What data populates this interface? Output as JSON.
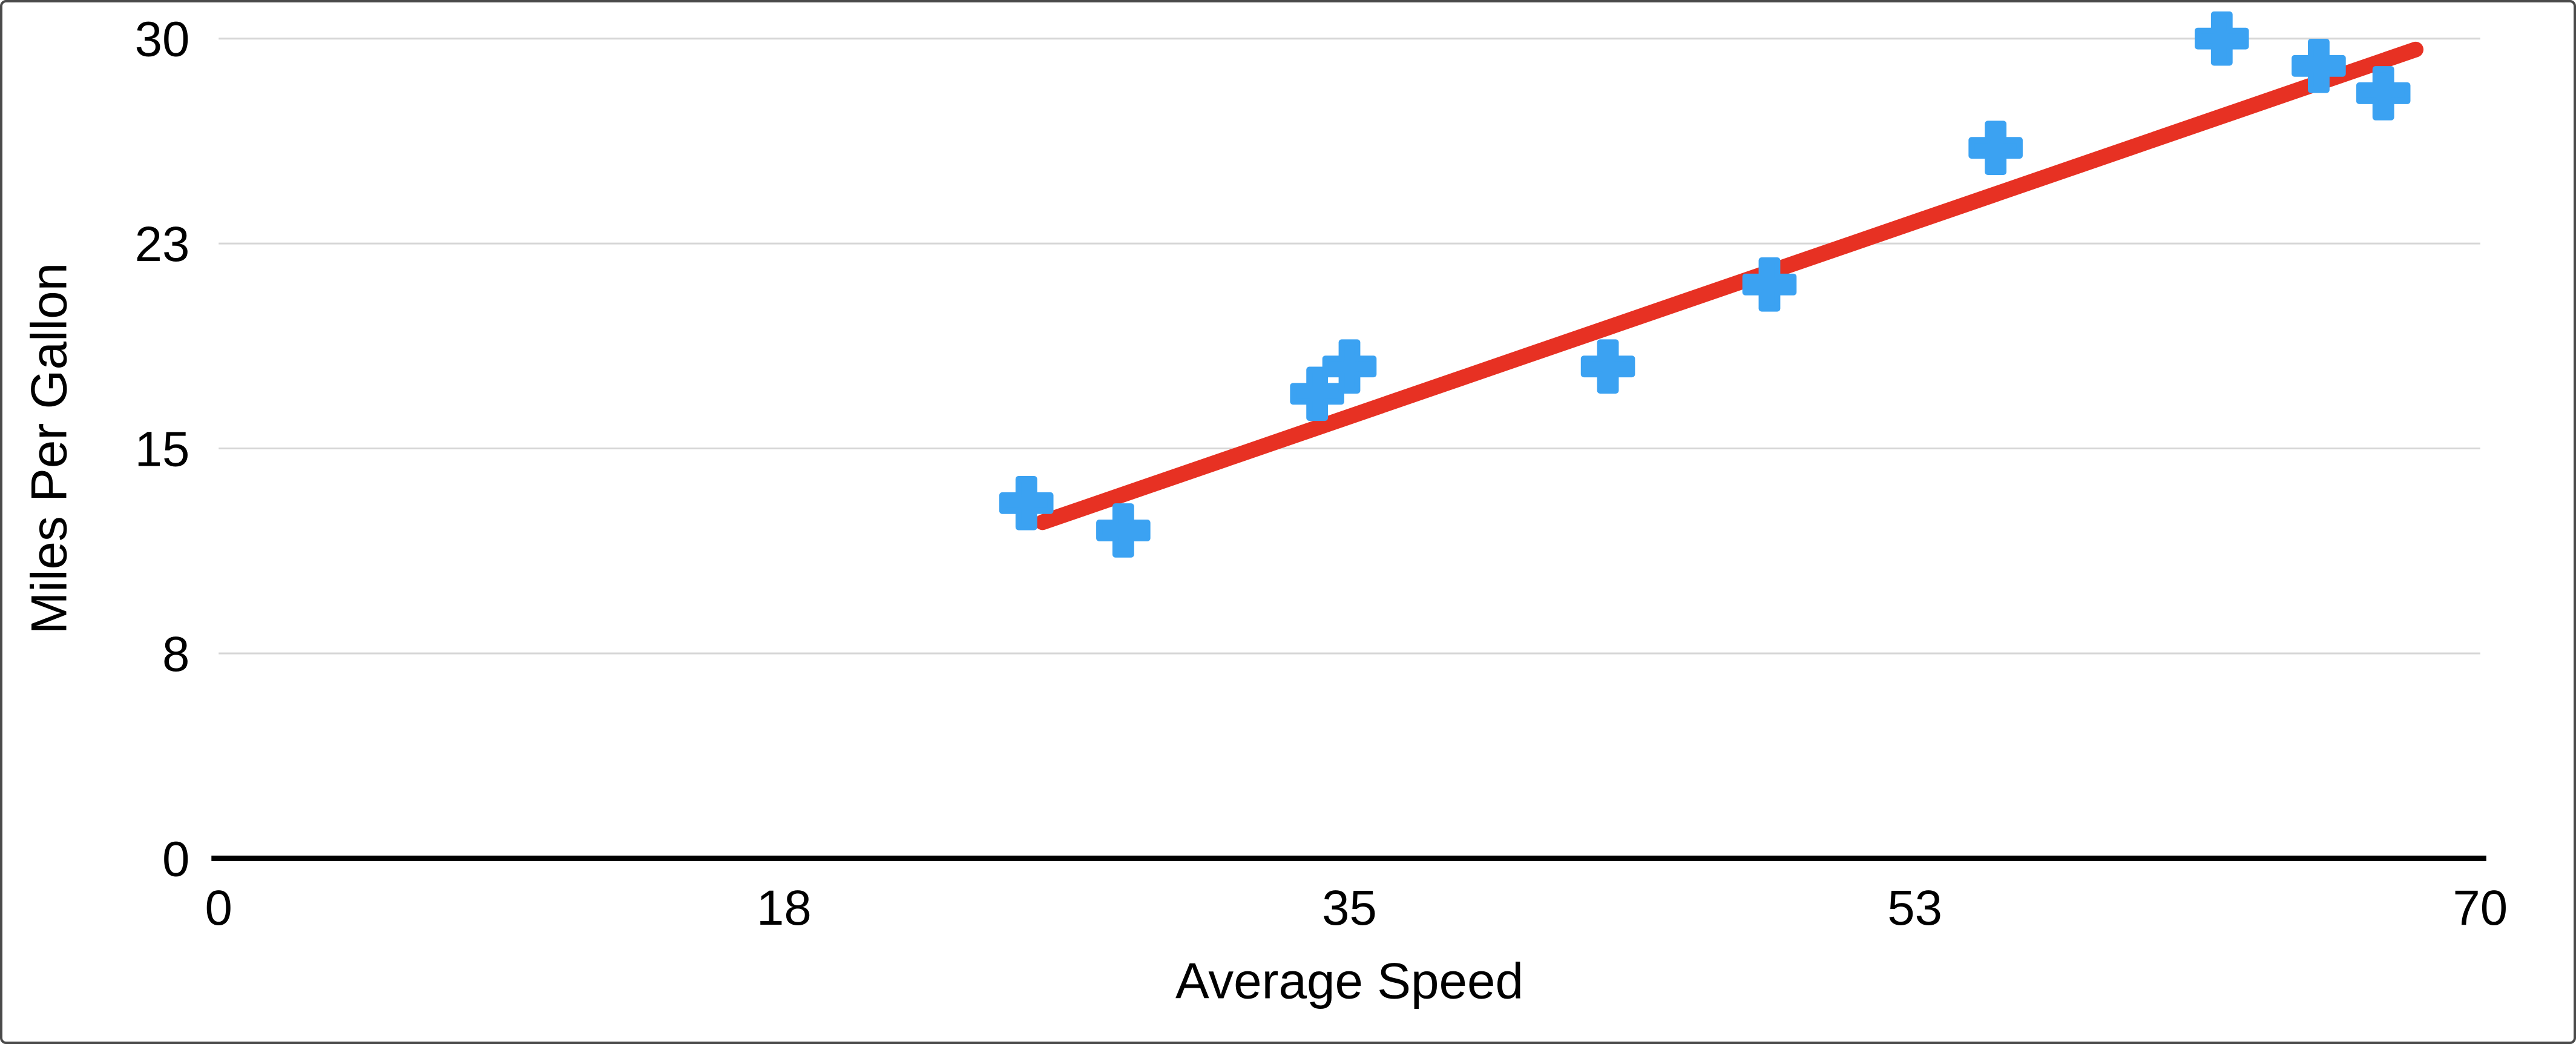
{
  "chart_data": {
    "type": "scatter",
    "title": "",
    "xlabel": "Average Speed",
    "ylabel": "Miles Per Gallon",
    "xlim": [
      0,
      70
    ],
    "ylim": [
      0,
      30
    ],
    "grid": "horizontal",
    "legend": "none",
    "x_ticks": [
      {
        "value": 0,
        "label": "0"
      },
      {
        "value": 17.5,
        "label": "18"
      },
      {
        "value": 35,
        "label": "35"
      },
      {
        "value": 52.5,
        "label": "53"
      },
      {
        "value": 70,
        "label": "70"
      }
    ],
    "y_ticks": [
      {
        "value": 0,
        "label": "0"
      },
      {
        "value": 7.5,
        "label": "8"
      },
      {
        "value": 15,
        "label": "15"
      },
      {
        "value": 22.5,
        "label": "23"
      },
      {
        "value": 30,
        "label": "30"
      }
    ],
    "series": [
      {
        "name": "Miles Per Gallon",
        "marker": "plus",
        "color": "#3BA2F2",
        "points": [
          [
            25,
            13
          ],
          [
            28,
            12
          ],
          [
            34,
            17
          ],
          [
            35,
            18
          ],
          [
            43,
            18
          ],
          [
            48,
            21
          ],
          [
            55,
            26
          ],
          [
            62,
            30
          ],
          [
            65,
            29
          ],
          [
            67,
            28
          ]
        ]
      }
    ],
    "trendline": {
      "color": "#E73123",
      "x1": 25.5,
      "y1": 12.3,
      "x2": 68,
      "y2": 29.6
    }
  },
  "colors": {
    "background": "#FFFFFF",
    "border": "#4A4A4A",
    "axis": "#000000",
    "gridline": "#D6D6D6",
    "text": "#000000",
    "marker": "#3BA2F2",
    "trendline": "#E73123"
  }
}
